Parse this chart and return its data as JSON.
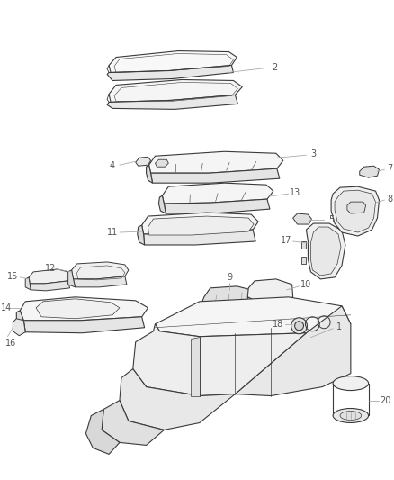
{
  "bg_color": "#ffffff",
  "line_color": "#3a3a3a",
  "label_color": "#555555",
  "leader_color": "#aaaaaa",
  "figsize": [
    4.38,
    5.33
  ],
  "dpi": 100,
  "lw": 0.8
}
